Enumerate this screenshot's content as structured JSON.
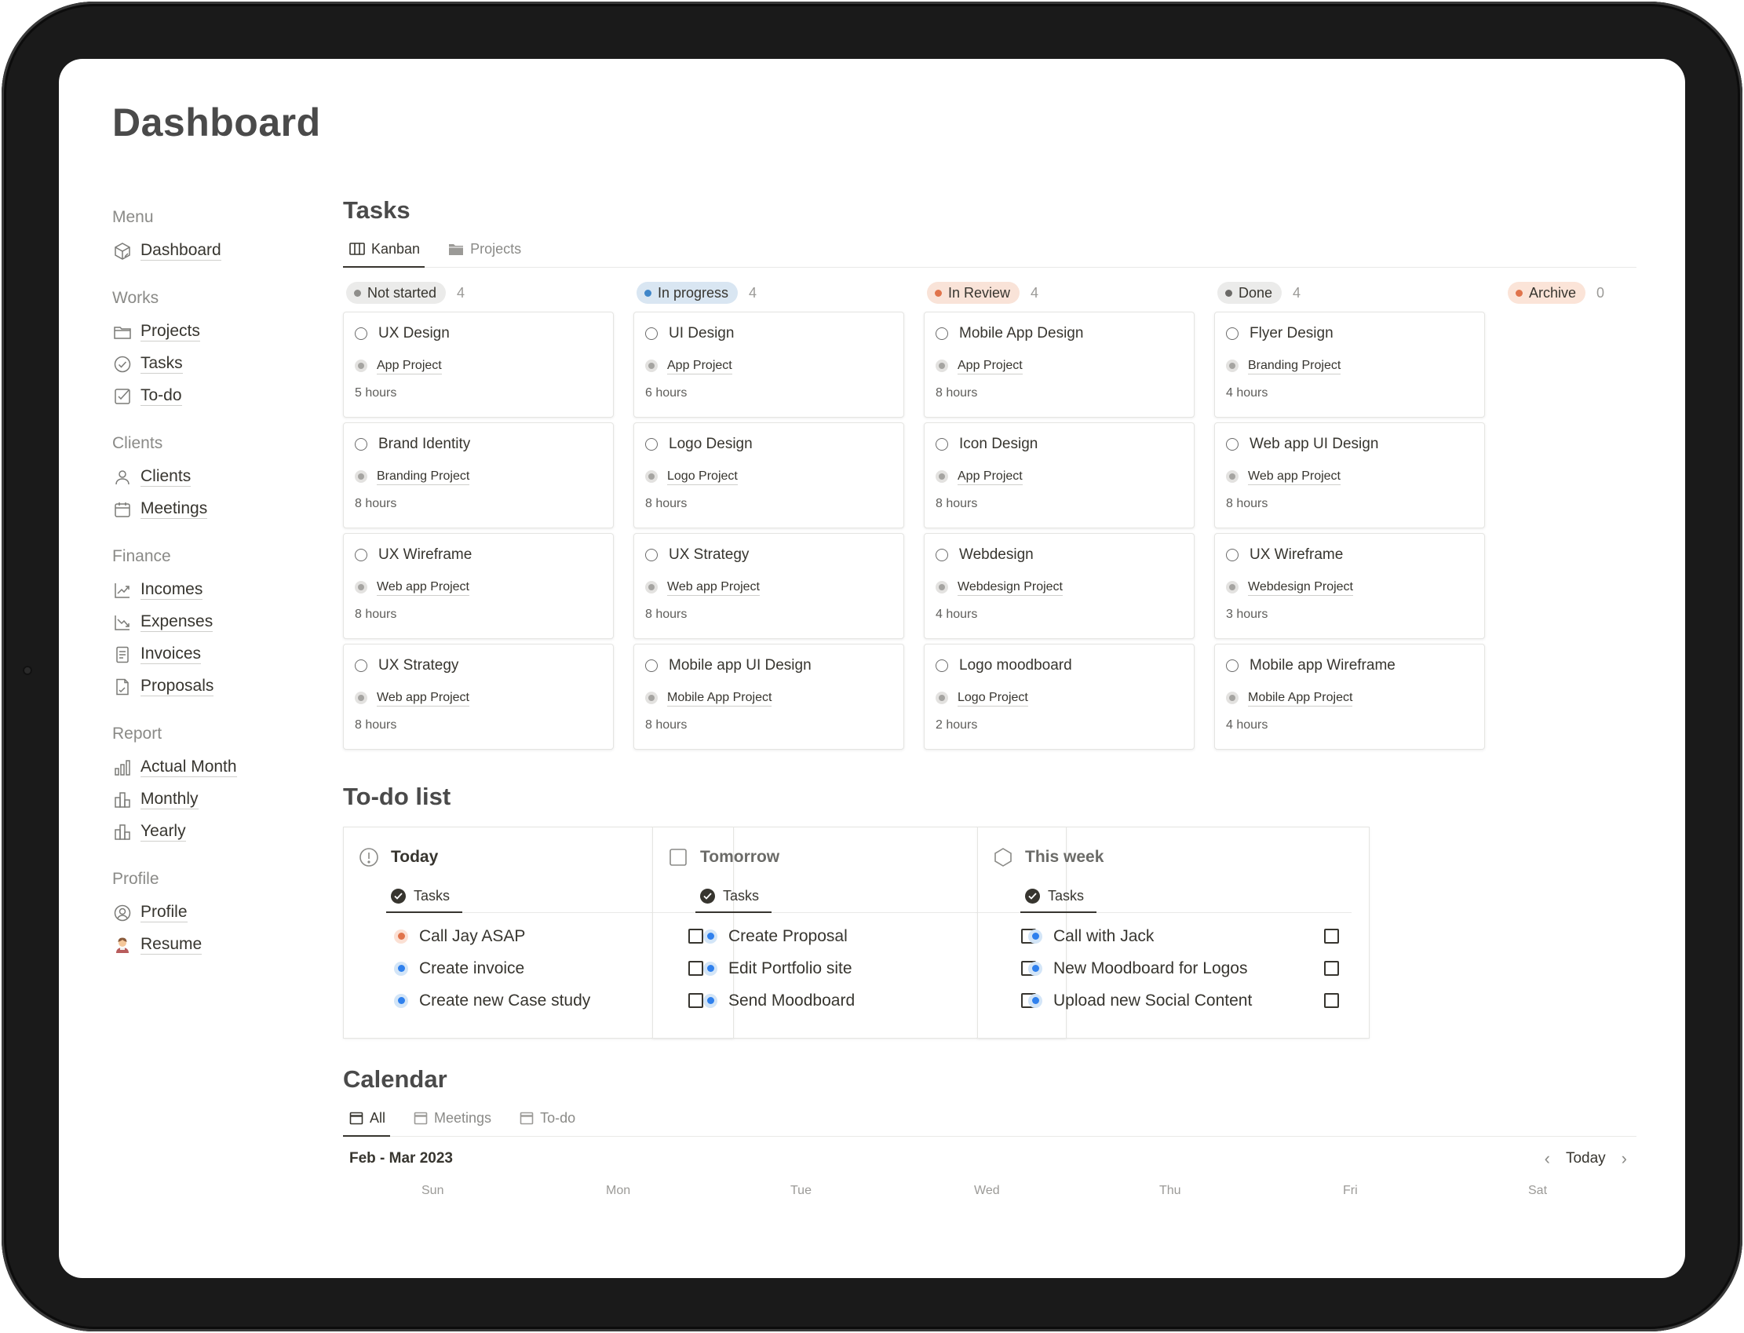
{
  "page": {
    "title": "Dashboard"
  },
  "sidebar": {
    "sections": [
      {
        "heading": "Menu",
        "items": [
          {
            "label": "Dashboard",
            "icon": "cube-icon"
          }
        ]
      },
      {
        "heading": "Works",
        "items": [
          {
            "label": "Projects",
            "icon": "folder-icon"
          },
          {
            "label": "Tasks",
            "icon": "check-circle-icon"
          },
          {
            "label": "To-do",
            "icon": "checkbox-icon"
          }
        ]
      },
      {
        "heading": "Clients",
        "items": [
          {
            "label": "Clients",
            "icon": "person-icon"
          },
          {
            "label": "Meetings",
            "icon": "calendar-icon"
          }
        ]
      },
      {
        "heading": "Finance",
        "items": [
          {
            "label": "Incomes",
            "icon": "trend-up-icon"
          },
          {
            "label": "Expenses",
            "icon": "trend-down-icon"
          },
          {
            "label": "Invoices",
            "icon": "document-icon"
          },
          {
            "label": "Proposals",
            "icon": "signed-document-icon"
          }
        ]
      },
      {
        "heading": "Report",
        "items": [
          {
            "label": "Actual Month",
            "icon": "bar-chart-icon"
          },
          {
            "label": "Monthly",
            "icon": "building-chart-icon"
          },
          {
            "label": "Yearly",
            "icon": "building-chart-icon"
          }
        ]
      },
      {
        "heading": "Profile",
        "items": [
          {
            "label": "Profile",
            "icon": "user-circle-icon"
          },
          {
            "label": "Resume",
            "icon": "person-emoji-icon"
          }
        ]
      }
    ]
  },
  "tasks": {
    "heading": "Tasks",
    "tabs": [
      {
        "label": "Kanban",
        "icon": "columns-icon"
      },
      {
        "label": "Projects",
        "icon": "folder-icon"
      }
    ],
    "columns": [
      {
        "status": "Not started",
        "count": "4",
        "pill_bg": "#ebebea",
        "dot": "#8f8e8b",
        "cards": [
          {
            "title": "UX Design",
            "project": "App Project",
            "hours": "5 hours"
          },
          {
            "title": "Brand Identity",
            "project": "Branding Project",
            "hours": "8 hours"
          },
          {
            "title": "UX Wireframe",
            "project": "Web app Project",
            "hours": "8 hours"
          },
          {
            "title": "UX Strategy",
            "project": "Web app Project",
            "hours": "8 hours"
          }
        ]
      },
      {
        "status": "In progress",
        "count": "4",
        "pill_bg": "#d9e6f2",
        "dot": "#3f86c9",
        "cards": [
          {
            "title": "UI Design",
            "project": "App Project",
            "hours": "6 hours"
          },
          {
            "title": "Logo Design",
            "project": "Logo Project",
            "hours": "8 hours"
          },
          {
            "title": "UX Strategy",
            "project": "Web app Project",
            "hours": "8 hours"
          },
          {
            "title": "Mobile app UI Design",
            "project": "Mobile App Project",
            "hours": "8 hours"
          }
        ]
      },
      {
        "status": "In Review",
        "count": "4",
        "pill_bg": "#f9e3d8",
        "dot": "#e0744c",
        "cards": [
          {
            "title": "Mobile App Design",
            "project": "App Project",
            "hours": "8 hours"
          },
          {
            "title": "Icon Design",
            "project": "App Project",
            "hours": "8 hours"
          },
          {
            "title": "Webdesign",
            "project": "Webdesign Project",
            "hours": "4 hours"
          },
          {
            "title": "Logo moodboard",
            "project": "Logo Project",
            "hours": "2 hours"
          }
        ]
      },
      {
        "status": "Done",
        "count": "4",
        "pill_bg": "#ebebea",
        "dot": "#6b6a67",
        "cards": [
          {
            "title": "Flyer Design",
            "project": "Branding Project",
            "hours": "4 hours"
          },
          {
            "title": "Web app UI Design",
            "project": "Web app Project",
            "hours": "8 hours"
          },
          {
            "title": "UX Wireframe",
            "project": "Webdesign Project",
            "hours": "3 hours"
          },
          {
            "title": "Mobile app Wireframe",
            "project": "Mobile App Project",
            "hours": "4 hours"
          }
        ]
      },
      {
        "status": "Archive",
        "count": "0",
        "pill_bg": "#fbe4d8",
        "dot": "#e0744c",
        "cards": []
      }
    ]
  },
  "todo": {
    "heading": "To-do list",
    "groups": [
      {
        "title": "Today",
        "icon": "exclamation-circle-icon",
        "tab": "Tasks",
        "items": [
          {
            "label": "Call Jay ASAP",
            "dot": "orange"
          },
          {
            "label": "Create invoice",
            "dot": "blue"
          },
          {
            "label": "Create new Case study",
            "dot": "blue"
          }
        ]
      },
      {
        "title": "Tomorrow",
        "icon": "square-icon",
        "tab": "Tasks",
        "items": [
          {
            "label": "Create Proposal",
            "dot": "blue"
          },
          {
            "label": "Edit Portfolio site",
            "dot": "blue"
          },
          {
            "label": "Send Moodboard",
            "dot": "blue"
          }
        ]
      },
      {
        "title": "This week",
        "icon": "hexagon-icon",
        "tab": "Tasks",
        "items": [
          {
            "label": "Call with Jack",
            "dot": "blue"
          },
          {
            "label": "New Moodboard for Logos",
            "dot": "blue"
          },
          {
            "label": "Upload new Social Content",
            "dot": "blue"
          }
        ]
      }
    ]
  },
  "calendar": {
    "heading": "Calendar",
    "tabs": [
      {
        "label": "All"
      },
      {
        "label": "Meetings"
      },
      {
        "label": "To-do"
      }
    ],
    "range": "Feb - Mar 2023",
    "today_label": "Today",
    "days": [
      "Sun",
      "Mon",
      "Tue",
      "Wed",
      "Thu",
      "Fri",
      "Sat"
    ]
  }
}
